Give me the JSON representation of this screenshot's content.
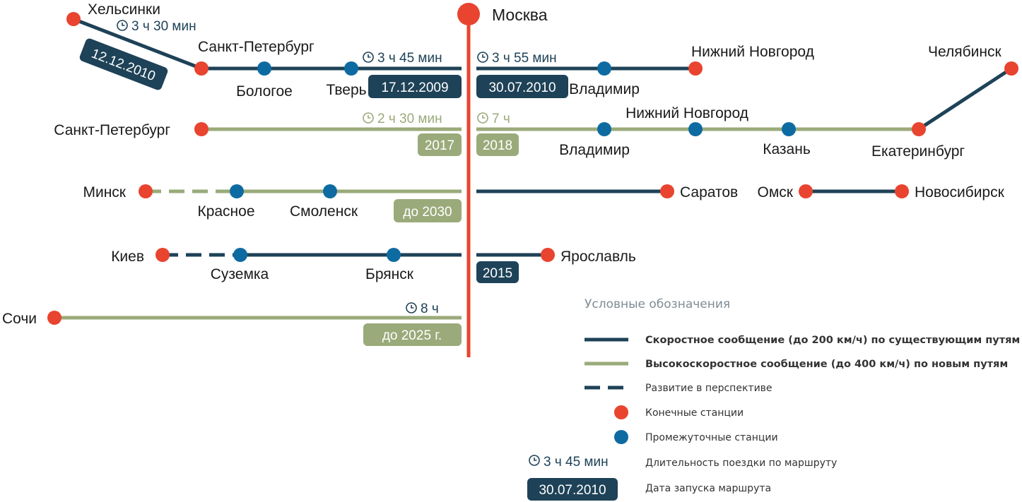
{
  "center": {
    "name": "Москва"
  },
  "colors": {
    "dark": "#1e4257",
    "green": "#9aaa7a",
    "red": "#e8442f",
    "blue": "#0e6ba1"
  },
  "routes": {
    "helsinki": {
      "city": "Хельсинки",
      "duration": "3 ч 30 мин",
      "date": "12.12.2010"
    },
    "spb_fast": {
      "spb": "Санкт-Петербург",
      "bologoe": "Бологое",
      "tver": "Тверь",
      "duration": "3 ч 45 мин",
      "date": "17.12.2009"
    },
    "nnov_fast": {
      "vladimir": "Владимир",
      "nnov": "Нижний Новгород",
      "duration": "3 ч 55 мин",
      "date": "30.07.2010"
    },
    "spb_hs": {
      "spb": "Санкт-Петербург",
      "duration": "2 ч 30 мин",
      "year": "2017"
    },
    "east_hs": {
      "vladimir": "Владимир",
      "nnov": "Нижний Новгород",
      "kazan": "Казань",
      "ekb": "Екатеринбург",
      "chel": "Челябинск",
      "duration": "7 ч",
      "year": "2018"
    },
    "minsk": {
      "minsk": "Минск",
      "krasnoe": "Красное",
      "smolensk": "Смоленск",
      "year": "до 2030"
    },
    "saratov": {
      "saratov": "Саратов"
    },
    "omsk": {
      "omsk": "Омск",
      "novosib": "Новосибирск"
    },
    "kiev": {
      "kiev": "Киев",
      "suzemka": "Суземка",
      "bryansk": "Брянск"
    },
    "yaroslavl": {
      "yaroslavl": "Ярославль",
      "year": "2015"
    },
    "sochi": {
      "sochi": "Сочи",
      "duration": "8 ч",
      "year": "до 2025 г."
    }
  },
  "legend": {
    "title": "Условные обозначения",
    "fast": "Скоростное сообщение (до 200 км/ч) по существующим путям",
    "hs": "Высокоскоростное сообщение (до 400 км/ч) по новым путям",
    "future": "Развитие в перспективе",
    "terminal": "Конечные станции",
    "intermediate": "Промежуточные станции",
    "duration_sample": "3 ч 45 мин",
    "duration_label": "Длительность поездки по маршруту",
    "date_sample": "30.07.2010",
    "date_label": "Дата запуска маршрута"
  }
}
